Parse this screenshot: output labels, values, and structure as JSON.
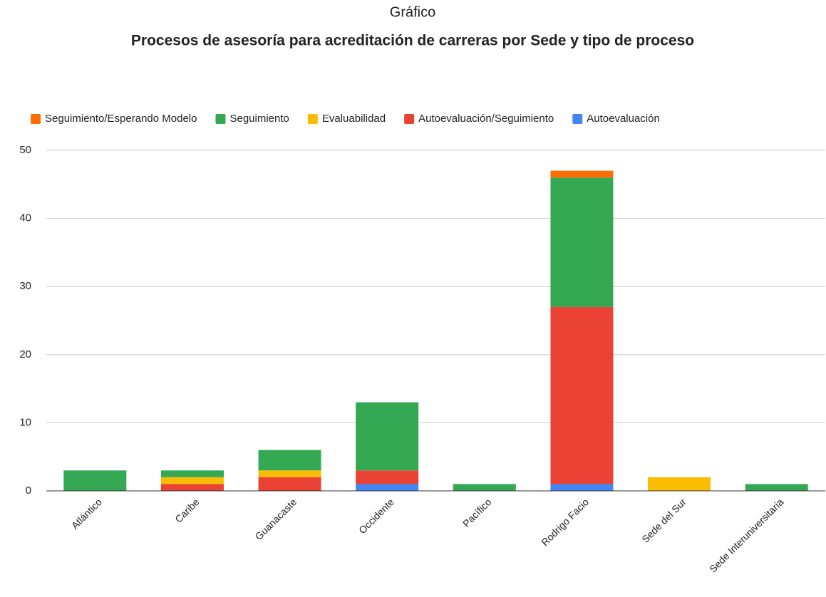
{
  "chart_data": {
    "type": "stacked_bar",
    "title": "Gráfico",
    "subtitle": "Procesos de asesoría para acreditación de carreras por Sede y tipo de proceso",
    "categories": [
      "Atlántico",
      "Caribe",
      "Guanacaste",
      "Occidente",
      "Pacífico",
      "Rodrigo Facio",
      "Sede del Sur",
      "Sede Interuniversitaria"
    ],
    "series": [
      {
        "name": "Seguimiento/Esperando Modelo",
        "color": "#ff6d01",
        "values": [
          0,
          0,
          0,
          0,
          0,
          1,
          0,
          0
        ]
      },
      {
        "name": "Seguimiento",
        "color": "#34a853",
        "values": [
          3,
          1,
          3,
          10,
          1,
          19,
          0,
          1
        ]
      },
      {
        "name": "Evaluabilidad",
        "color": "#fbbc04",
        "values": [
          0,
          1,
          1,
          0,
          0,
          0,
          2,
          0
        ]
      },
      {
        "name": "Autoevaluación/Seguimiento",
        "color": "#ea4335",
        "values": [
          0,
          1,
          2,
          2,
          0,
          26,
          0,
          0
        ]
      },
      {
        "name": "Autoevaluación",
        "color": "#4285f4",
        "values": [
          0,
          0,
          0,
          1,
          0,
          1,
          0,
          0
        ]
      }
    ],
    "ylim": [
      0,
      50
    ],
    "yticks": [
      0,
      10,
      20,
      30,
      40,
      50
    ],
    "grid": true,
    "legend": "top"
  }
}
